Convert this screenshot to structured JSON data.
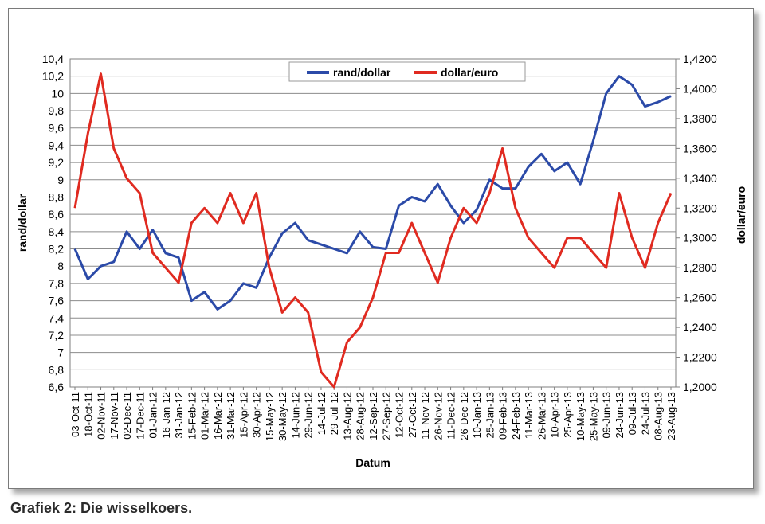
{
  "caption": "Grafiek 2: Die wisselkoers.",
  "chart_data": {
    "type": "line",
    "xlabel": "Datum",
    "ylabel_left": "rand/dollar",
    "ylabel_right": "dollar/euro",
    "ylim_left": [
      6.6,
      10.4
    ],
    "ylim_right": [
      1.2,
      1.42
    ],
    "yticks_left": [
      "6,6",
      "6,8",
      "7",
      "7,2",
      "7,4",
      "7,6",
      "7,8",
      "8",
      "8,2",
      "8,4",
      "8,6",
      "8,8",
      "9",
      "9,2",
      "9,4",
      "9,6",
      "9,8",
      "10",
      "10,2",
      "10,4"
    ],
    "yticks_right": [
      "1,2000",
      "1,2200",
      "1,2400",
      "1,2600",
      "1,2800",
      "1,3000",
      "1,3200",
      "1,3400",
      "1,3600",
      "1,3800",
      "1,4000",
      "1,4200"
    ],
    "categories": [
      "03-Oct-11",
      "18-Oct-11",
      "02-Nov-11",
      "17-Nov-11",
      "02-Dec-11",
      "17-Dec-11",
      "01-Jan-12",
      "16-Jan-12",
      "31-Jan-12",
      "15-Feb-12",
      "01-Mar-12",
      "16-Mar-12",
      "31-Mar-12",
      "15-Apr-12",
      "30-Apr-12",
      "15-May-12",
      "30-May-12",
      "14-Jun-12",
      "29-Jun-12",
      "14-Jul-12",
      "29-Jul-12",
      "13-Aug-12",
      "28-Aug-12",
      "12-Sep-12",
      "27-Sep-12",
      "12-Oct-12",
      "27-Oct-12",
      "11-Nov-12",
      "26-Nov-12",
      "11-Dec-12",
      "26-Dec-12",
      "10-Jan-13",
      "25-Jan-13",
      "09-Feb-13",
      "24-Feb-13",
      "11-Mar-13",
      "26-Mar-13",
      "10-Apr-13",
      "25-Apr-13",
      "10-May-13",
      "25-May-13",
      "09-Jun-13",
      "24-Jun-13",
      "09-Jul-13",
      "24-Jul-13",
      "08-Aug-13",
      "23-Aug-13"
    ],
    "legend_position": "top-center",
    "grid": true,
    "series": [
      {
        "name": "rand/dollar",
        "color": "#2b4aa8",
        "axis": "left",
        "values": [
          8.2,
          7.85,
          8.0,
          8.05,
          8.4,
          8.2,
          8.42,
          8.15,
          8.1,
          7.6,
          7.7,
          7.5,
          7.6,
          7.8,
          7.75,
          8.1,
          8.38,
          8.5,
          8.3,
          8.25,
          8.2,
          8.15,
          8.4,
          8.22,
          8.2,
          8.7,
          8.8,
          8.75,
          8.95,
          8.7,
          8.5,
          8.65,
          9.0,
          8.9,
          8.9,
          9.15,
          9.3,
          9.1,
          9.2,
          8.95,
          9.45,
          10.0,
          10.2,
          10.1,
          9.85,
          9.9,
          9.97
        ]
      },
      {
        "name": "dollar/euro",
        "color": "#e02a20",
        "axis": "right",
        "values": [
          1.32,
          1.37,
          1.41,
          1.36,
          1.34,
          1.33,
          1.29,
          1.28,
          1.27,
          1.31,
          1.32,
          1.31,
          1.33,
          1.31,
          1.33,
          1.28,
          1.25,
          1.26,
          1.25,
          1.21,
          1.2,
          1.23,
          1.24,
          1.26,
          1.29,
          1.29,
          1.31,
          1.29,
          1.27,
          1.3,
          1.32,
          1.31,
          1.33,
          1.36,
          1.32,
          1.3,
          1.29,
          1.28,
          1.3,
          1.3,
          1.29,
          1.28,
          1.33,
          1.3,
          1.28,
          1.31,
          1.33
        ]
      }
    ]
  }
}
